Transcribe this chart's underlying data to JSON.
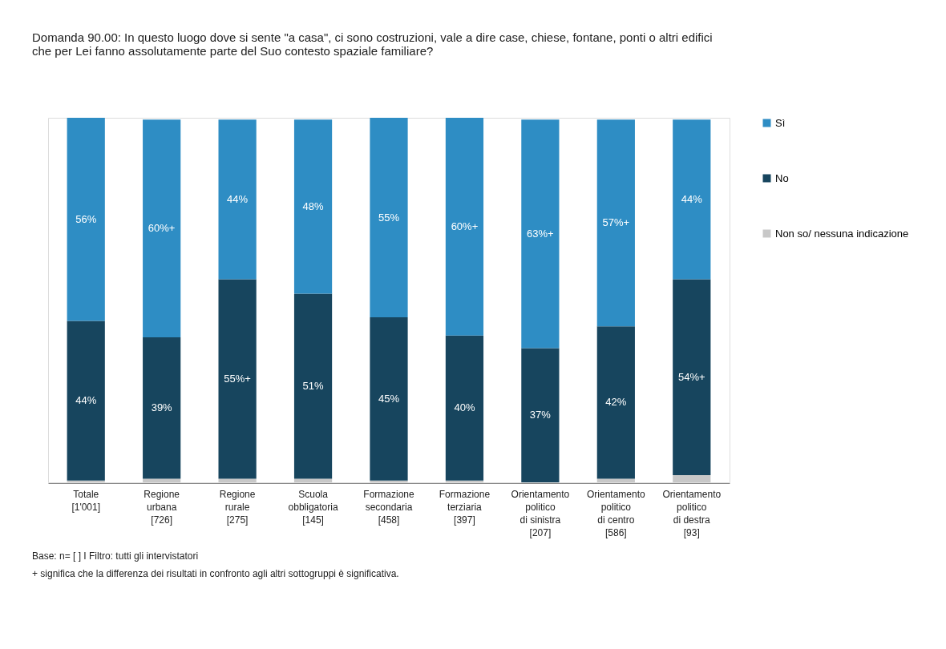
{
  "chart_data": {
    "type": "bar",
    "stacked": true,
    "title": "Domanda 90.00:   In questo luogo dove si sente \"a casa\", ci sono costruzioni, vale a dire case, chiese, fontane, ponti o altri edifici\nche per Lei fanno assolutamente parte del Suo contesto spaziale familiare?",
    "categories": [
      "Totale\n[1'001]",
      "Regione\nurbana\n[726]",
      "Regione\nrurale\n[275]",
      "Scuola\nobbligatoria\n[145]",
      "Formazione\nsecondaria\n[458]",
      "Formazione\nterziaria\n[397]",
      "Orientamento\npolitico\ndi sinistra\n[207]",
      "Orientamento\npolitico\ndi centro\n[586]",
      "Orientamento\npolitico\ndi destra\n[93]"
    ],
    "series": [
      {
        "name": "Non so/ nessuna indicazione",
        "color": "#c8c8c8",
        "values": [
          0.5,
          1,
          1,
          1,
          0.5,
          0.5,
          null,
          1,
          2
        ]
      },
      {
        "name": "No",
        "color": "#17455e",
        "values": [
          44,
          39,
          55,
          51,
          45,
          40,
          37,
          42,
          54
        ],
        "value_labels": [
          "44%",
          "39%",
          "55%+",
          "51%",
          "45%",
          "40%",
          "37%",
          "42%",
          "54%+"
        ]
      },
      {
        "name": "Sì",
        "color": "#2e8dc4",
        "values": [
          56,
          60,
          44,
          48,
          55,
          60,
          63,
          57,
          44
        ],
        "value_labels": [
          "56%",
          "60%+",
          "44%",
          "48%",
          "55%",
          "60%+",
          "63%+",
          "57%+",
          "44%"
        ]
      }
    ],
    "legend": "right",
    "annotations": [
      "Base:   n= [ ] I Filtro: tutti gli intervistatori",
      " + significa che la differenza dei risultati in confronto agli altri sottogruppi è significativa."
    ]
  }
}
